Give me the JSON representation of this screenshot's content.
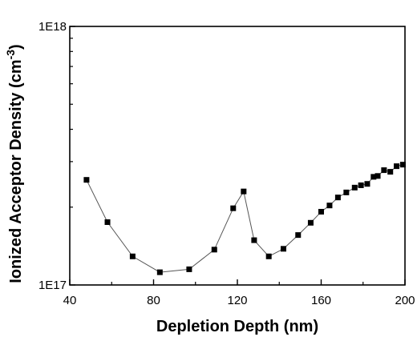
{
  "chart_data": {
    "type": "line",
    "title": "",
    "xlabel": "Depletion Depth (nm)",
    "ylabel": "Ionized Acceptor Density (cm",
    "ylabel_sup": "-3",
    "ylabel_suffix": ")",
    "xlim": [
      40,
      200
    ],
    "ylim": [
      1e+17,
      1e+18
    ],
    "y_scale": "log",
    "x_ticks": [
      40,
      80,
      120,
      160,
      200
    ],
    "x_tick_labels": [
      "40",
      "80",
      "120",
      "160",
      "200"
    ],
    "y_ticks": [
      1e+17,
      1e+18
    ],
    "y_tick_labels": [
      "1E17",
      "1E18"
    ],
    "grid": false,
    "marker": "square",
    "series": [
      {
        "x": [
          48,
          58,
          70,
          83,
          97,
          109,
          118,
          123,
          128,
          135,
          142,
          149,
          155,
          160,
          164,
          168,
          172,
          176,
          179,
          182,
          185,
          187,
          190,
          193,
          196,
          199
        ],
        "y": [
          2.55e+17,
          1.75e+17,
          1.29e+17,
          1.12e+17,
          1.15e+17,
          1.37e+17,
          1.98e+17,
          2.3e+17,
          1.49e+17,
          1.29e+17,
          1.38e+17,
          1.56e+17,
          1.74e+17,
          1.92e+17,
          2.03e+17,
          2.18e+17,
          2.28e+17,
          2.38e+17,
          2.43e+17,
          2.46e+17,
          2.62e+17,
          2.64e+17,
          2.78e+17,
          2.74e+17,
          2.88e+17,
          2.92e+17
        ]
      }
    ]
  }
}
